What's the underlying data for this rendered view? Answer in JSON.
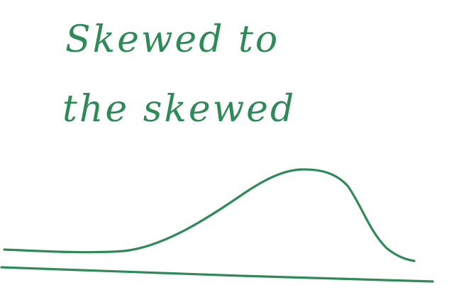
{
  "annotation": {
    "line1": "Skewed to",
    "line2": "the skewed"
  },
  "colors": {
    "ink": "#2e8b57",
    "background": "#ffffff"
  },
  "figure": {
    "shape": "right-peaked skewed distribution curve",
    "baseline": "horizontal axis line"
  }
}
